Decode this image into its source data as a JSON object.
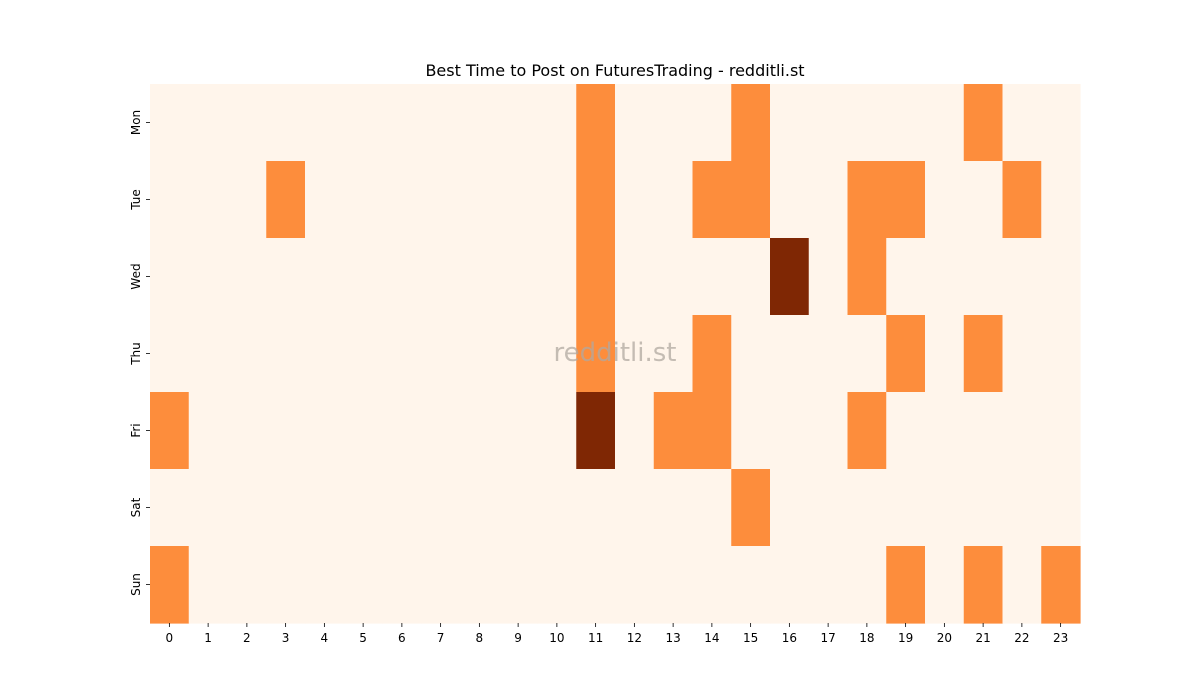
{
  "chart_data": {
    "type": "heatmap",
    "title": "Best Time to Post on FuturesTrading - redditli.st",
    "watermark": "redditli.st",
    "xlabel": "",
    "ylabel": "",
    "x_categories": [
      "0",
      "1",
      "2",
      "3",
      "4",
      "5",
      "6",
      "7",
      "8",
      "9",
      "10",
      "11",
      "12",
      "13",
      "14",
      "15",
      "16",
      "17",
      "18",
      "19",
      "20",
      "21",
      "22",
      "23"
    ],
    "y_categories": [
      "Mon",
      "Tue",
      "Wed",
      "Thu",
      "Fri",
      "Sat",
      "Sun"
    ],
    "values": [
      [
        0,
        0,
        0,
        0,
        0,
        0,
        0,
        0,
        0,
        0,
        0,
        1,
        0,
        0,
        0,
        1,
        0,
        0,
        0,
        0,
        0,
        1,
        0,
        0
      ],
      [
        0,
        0,
        0,
        1,
        0,
        0,
        0,
        0,
        0,
        0,
        0,
        1,
        0,
        0,
        1,
        1,
        0,
        0,
        1,
        1,
        0,
        0,
        1,
        0
      ],
      [
        0,
        0,
        0,
        0,
        0,
        0,
        0,
        0,
        0,
        0,
        0,
        1,
        0,
        0,
        0,
        0,
        2,
        0,
        1,
        0,
        0,
        0,
        0,
        0
      ],
      [
        0,
        0,
        0,
        0,
        0,
        0,
        0,
        0,
        0,
        0,
        0,
        1,
        0,
        0,
        1,
        0,
        0,
        0,
        0,
        1,
        0,
        1,
        0,
        0
      ],
      [
        1,
        0,
        0,
        0,
        0,
        0,
        0,
        0,
        0,
        0,
        0,
        2,
        0,
        1,
        1,
        0,
        0,
        0,
        1,
        0,
        0,
        0,
        0,
        0
      ],
      [
        0,
        0,
        0,
        0,
        0,
        0,
        0,
        0,
        0,
        0,
        0,
        0,
        0,
        0,
        0,
        1,
        0,
        0,
        0,
        0,
        0,
        0,
        0,
        0
      ],
      [
        1,
        0,
        0,
        0,
        0,
        0,
        0,
        0,
        0,
        0,
        0,
        0,
        0,
        0,
        0,
        0,
        0,
        0,
        0,
        1,
        0,
        1,
        0,
        1
      ]
    ],
    "colormap": [
      "#fff5eb",
      "#fd8d3c",
      "#7f2704"
    ],
    "legend": "none",
    "grid": false
  }
}
